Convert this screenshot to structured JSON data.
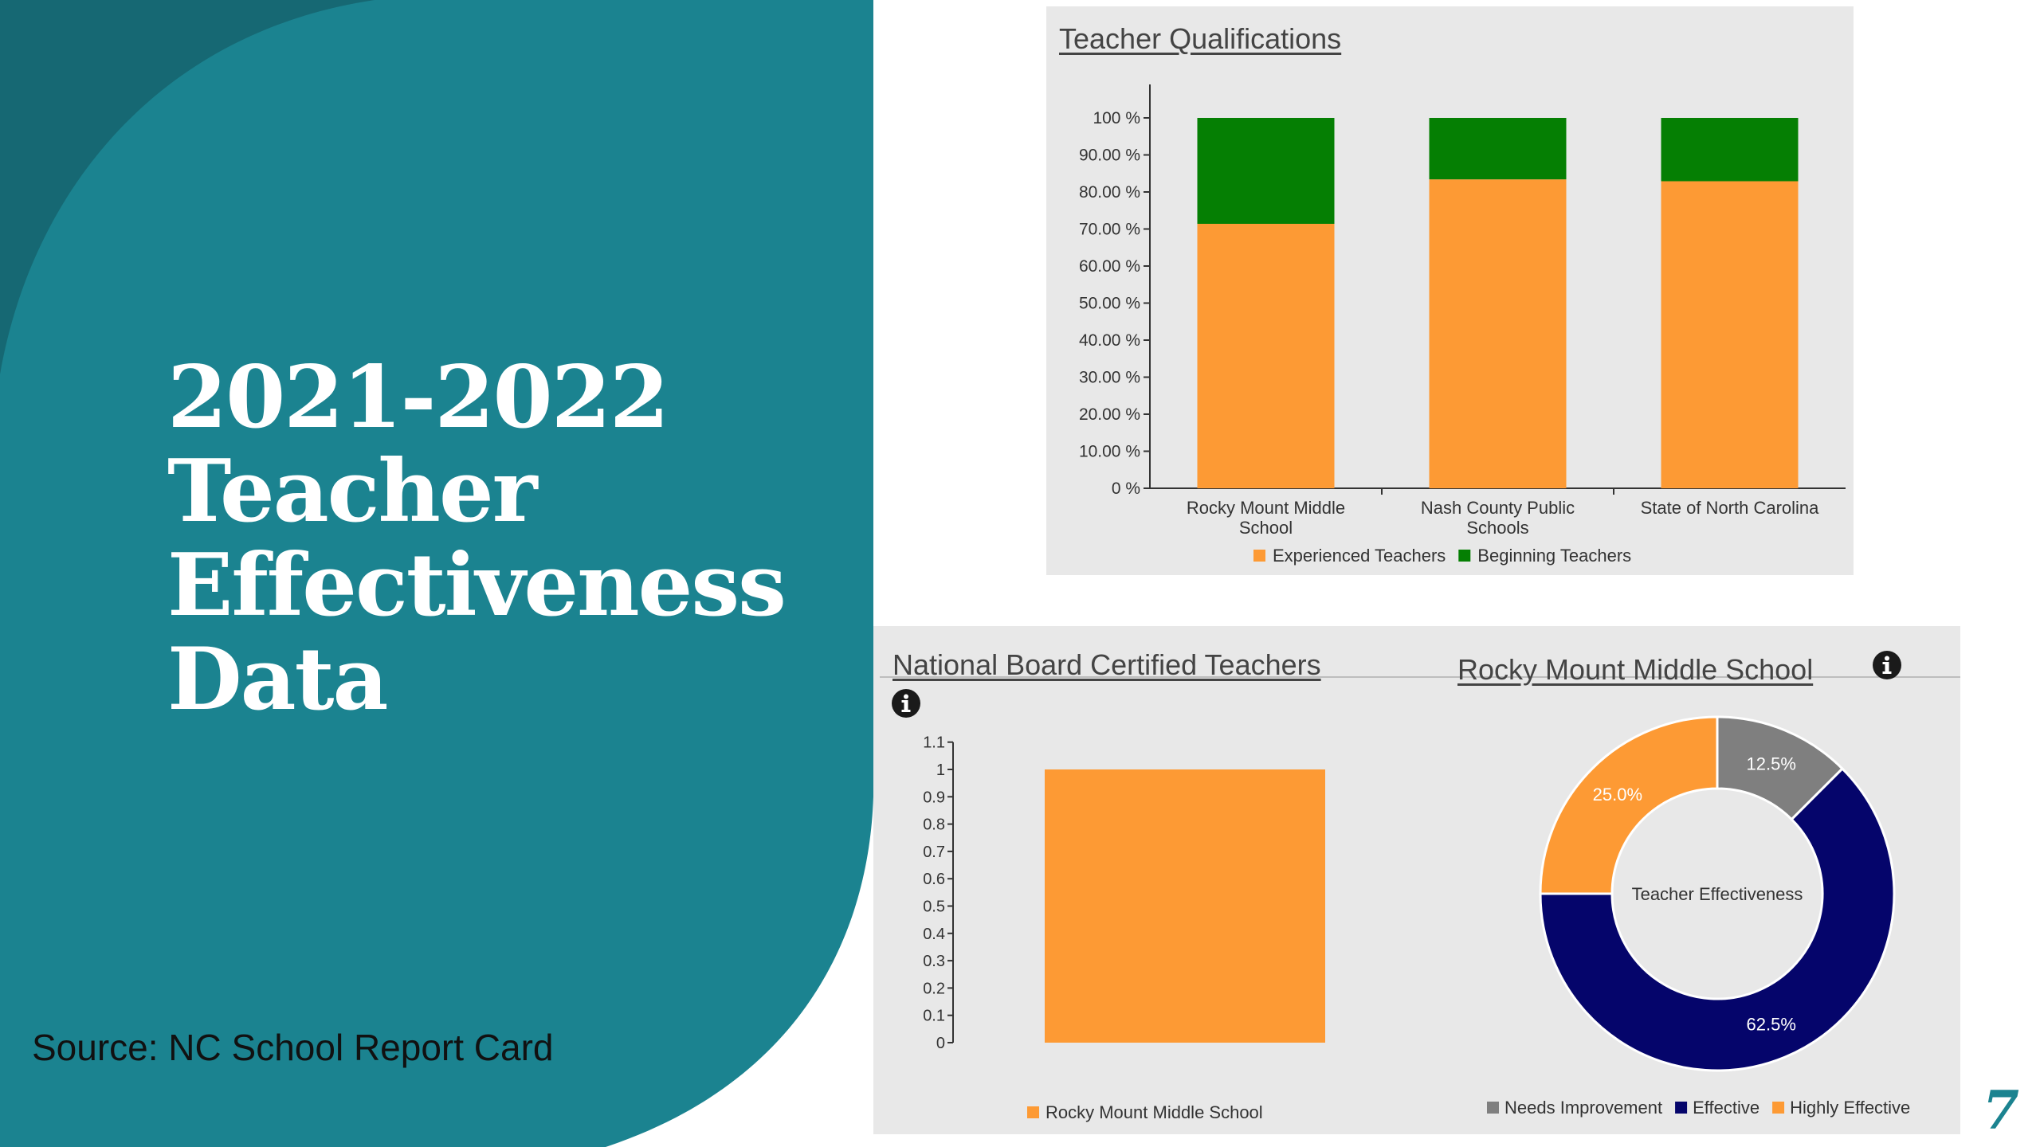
{
  "slide": {
    "title_lines": [
      "2021-2022",
      "Teacher",
      "Effectiveness",
      "Data"
    ],
    "source": "Source: NC School Report Card",
    "page_number": "7"
  },
  "colors": {
    "teal": "#1b8390",
    "teal_dark": "#166873",
    "orange": "#fd9a34",
    "green": "#057f03",
    "navy": "#05056b",
    "gray": "#7f7f7f",
    "panel_bg": "#e8e8e8"
  },
  "icons": {
    "info": "info-circle-icon"
  },
  "chart_data": [
    {
      "type": "bar",
      "stacked": true,
      "title": "Teacher Qualifications",
      "categories": [
        "Rocky Mount Middle School",
        "Nash County Public Schools",
        "State of North Carolina"
      ],
      "category_lines": [
        [
          "Rocky Mount Middle",
          "School"
        ],
        [
          "Nash County Public",
          "Schools"
        ],
        [
          "State of North Carolina"
        ]
      ],
      "series": [
        {
          "name": "Experienced Teachers",
          "color": "#fd9a34",
          "values": [
            71.4,
            83.4,
            82.9
          ]
        },
        {
          "name": "Beginning Teachers",
          "color": "#057f03",
          "values": [
            28.6,
            16.6,
            17.1
          ]
        }
      ],
      "yticks": [
        "0 %",
        "10.00 %",
        "20.00 %",
        "30.00 %",
        "40.00 %",
        "50.00 %",
        "60.00 %",
        "70.00 %",
        "80.00 %",
        "90.00 %",
        "100 %"
      ],
      "ylim": [
        0,
        100
      ],
      "legend": "bottom"
    },
    {
      "type": "bar",
      "title": "National Board Certified Teachers",
      "categories": [
        "Rocky Mount Middle School"
      ],
      "series": [
        {
          "name": "Rocky Mount Middle School",
          "color": "#fd9a34",
          "values": [
            1
          ]
        }
      ],
      "yticks": [
        "0",
        "0.1",
        "0.2",
        "0.3",
        "0.4",
        "0.5",
        "0.6",
        "0.7",
        "0.8",
        "0.9",
        "1",
        "1.1"
      ],
      "ylim": [
        0,
        1.1
      ],
      "legend": "bottom"
    },
    {
      "type": "pie",
      "donut": true,
      "title": "Rocky Mount Middle School",
      "center_label": "Teacher Effectiveness",
      "slices": [
        {
          "label": "Needs Improvement",
          "value": 12.5,
          "display": "12.5%",
          "color": "#7f7f7f"
        },
        {
          "label": "Effective",
          "value": 62.5,
          "display": "62.5%",
          "color": "#05056b"
        },
        {
          "label": "Highly Effective",
          "value": 25.0,
          "display": "25.0%",
          "color": "#fd9a34"
        }
      ],
      "legend": "bottom"
    }
  ]
}
